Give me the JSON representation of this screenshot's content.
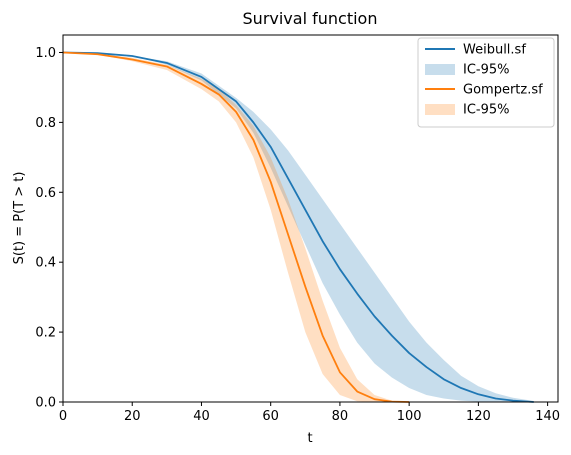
{
  "chart_data": {
    "type": "line",
    "title": "Survival function",
    "xlabel": "t",
    "ylabel": "S(t) = P(T > t)",
    "xlim": [
      0,
      143
    ],
    "ylim": [
      0,
      1.05
    ],
    "xticks": [
      0,
      20,
      40,
      60,
      80,
      100,
      120,
      140
    ],
    "yticks": [
      0.0,
      0.2,
      0.4,
      0.6,
      0.8,
      1.0
    ],
    "xtick_labels": [
      "0",
      "20",
      "40",
      "60",
      "80",
      "100",
      "120",
      "140"
    ],
    "ytick_labels": [
      "0.0",
      "0.2",
      "0.4",
      "0.6",
      "0.8",
      "1.0"
    ],
    "grid": false,
    "legend": {
      "position": "top-right",
      "entries": [
        {
          "label": "Weibull.sf",
          "kind": "line",
          "color": "#1f77b4"
        },
        {
          "label": "IC-95%",
          "kind": "band",
          "color": "#1f77b4"
        },
        {
          "label": "Gompertz.sf",
          "kind": "line",
          "color": "#ff7f0e"
        },
        {
          "label": "IC-95%",
          "kind": "band",
          "color": "#ff7f0e"
        }
      ]
    },
    "series": [
      {
        "name": "Weibull.sf",
        "color": "#1f77b4",
        "x": [
          0,
          10,
          20,
          30,
          40,
          50,
          55,
          60,
          65,
          70,
          75,
          80,
          85,
          90,
          95,
          100,
          105,
          110,
          115,
          120,
          125,
          130,
          136
        ],
        "y": [
          1.0,
          0.998,
          0.99,
          0.97,
          0.93,
          0.86,
          0.8,
          0.73,
          0.64,
          0.55,
          0.46,
          0.38,
          0.31,
          0.245,
          0.19,
          0.14,
          0.1,
          0.065,
          0.04,
          0.022,
          0.01,
          0.004,
          0.0
        ],
        "lower": [
          1.0,
          0.998,
          0.99,
          0.965,
          0.92,
          0.84,
          0.77,
          0.67,
          0.56,
          0.45,
          0.34,
          0.25,
          0.17,
          0.11,
          0.07,
          0.04,
          0.02,
          0.01,
          0.004,
          0.001,
          0.0,
          0.0,
          0.0
        ],
        "upper": [
          1.0,
          0.998,
          0.99,
          0.975,
          0.94,
          0.87,
          0.83,
          0.78,
          0.72,
          0.65,
          0.58,
          0.51,
          0.44,
          0.37,
          0.3,
          0.23,
          0.17,
          0.12,
          0.075,
          0.045,
          0.025,
          0.012,
          0.003
        ]
      },
      {
        "name": "Gompertz.sf",
        "color": "#ff7f0e",
        "x": [
          0,
          10,
          20,
          30,
          40,
          45,
          50,
          55,
          60,
          65,
          70,
          75,
          80,
          85,
          90,
          95,
          100
        ],
        "y": [
          1.0,
          0.995,
          0.98,
          0.96,
          0.91,
          0.88,
          0.83,
          0.75,
          0.63,
          0.48,
          0.33,
          0.19,
          0.085,
          0.03,
          0.008,
          0.001,
          0.0
        ],
        "lower": [
          1.0,
          0.994,
          0.975,
          0.95,
          0.895,
          0.86,
          0.8,
          0.7,
          0.55,
          0.37,
          0.2,
          0.08,
          0.02,
          0.002,
          0.0,
          0.0,
          0.0
        ],
        "upper": [
          1.0,
          0.996,
          0.985,
          0.965,
          0.925,
          0.895,
          0.85,
          0.79,
          0.7,
          0.58,
          0.44,
          0.29,
          0.155,
          0.065,
          0.02,
          0.004,
          0.0
        ]
      }
    ]
  }
}
